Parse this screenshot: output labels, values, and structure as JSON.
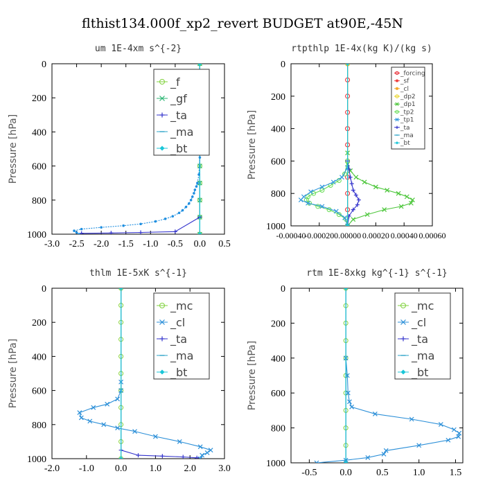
{
  "suptitle": "flthist134.000f_xp2_revert  BUDGET at90E,-45N",
  "chart_data": [
    {
      "type": "line",
      "title": "um  1E-4xm s^{-2}",
      "xlabel": "",
      "ylabel": "Pressure [hPa]",
      "xlim": [
        -3.0,
        0.5
      ],
      "ylim": [
        1000,
        0
      ],
      "y_inverted": true,
      "grid": false,
      "legend_position": "top-right",
      "xticks": [
        "-3.0",
        "-2.5",
        "-2.0",
        "-1.5",
        "-1.0",
        "-0.5",
        "0.0",
        "0.5"
      ],
      "yticks": [
        "0",
        "200",
        "400",
        "600",
        "800",
        "1000"
      ],
      "series": [
        {
          "name": "_f",
          "color": "#7fd13b",
          "marker": "o",
          "x": [
            0.0,
            0.0,
            0.0,
            0.0,
            0.0,
            0.0,
            0.0,
            0.0,
            0.0,
            0.0,
            0.0
          ],
          "y": [
            0,
            100,
            200,
            300,
            400,
            500,
            600,
            700,
            800,
            900,
            1000
          ]
        },
        {
          "name": "_gf",
          "color": "#2bb673",
          "marker": "x",
          "x": [
            0.0,
            0.0,
            0.0,
            0.0,
            0.0,
            0.0,
            0.0,
            0.0,
            0.0,
            0.0,
            0.0
          ],
          "y": [
            0,
            100,
            200,
            300,
            400,
            500,
            600,
            700,
            800,
            900,
            1000
          ]
        },
        {
          "name": "_ta",
          "color": "#3333cc",
          "marker": "+",
          "x": [
            0.0,
            0.0,
            0.0,
            -0.5,
            -1.2,
            -1.8,
            -2.4
          ],
          "y": [
            0,
            500,
            900,
            985,
            990,
            993,
            995
          ]
        },
        {
          "name": "_ma",
          "color": "#2aa3c8",
          "marker": "-",
          "x": [
            0.0,
            0.0
          ],
          "y": [
            0,
            1000
          ]
        },
        {
          "name": "_bt",
          "color": "#19c6d8",
          "marker": "diamond",
          "x": [
            0.0,
            0.0
          ],
          "y": [
            0,
            1000
          ]
        },
        {
          "name": "",
          "color": "#1f8fe0",
          "marker": "dot",
          "dashed": true,
          "x": [
            0.0,
            -0.02,
            -0.05,
            -0.07,
            -0.1,
            -0.12,
            -0.15,
            -0.18,
            -0.22,
            -0.28,
            -0.35,
            -0.42,
            -0.55,
            -0.7,
            -0.9,
            -1.2,
            -1.55,
            -2.0,
            -2.4,
            -2.55,
            -2.5,
            -2.45
          ],
          "y": [
            550,
            650,
            700,
            720,
            740,
            760,
            780,
            800,
            820,
            840,
            860,
            875,
            895,
            910,
            925,
            940,
            950,
            960,
            970,
            980,
            990,
            1000
          ]
        }
      ]
    },
    {
      "type": "line",
      "title": "rtpthlp  1E-4x(kg K)/(kg s)",
      "xlabel": "",
      "ylabel": "Pressure [hPa]",
      "xlim": [
        -0.0004,
        0.0006
      ],
      "ylim": [
        1000,
        0
      ],
      "y_inverted": true,
      "grid": false,
      "legend_position": "top-right",
      "xticks": [
        "-0.00040",
        "-0.00020",
        "0.00000",
        "0.00020",
        "0.00040",
        "0.00060"
      ],
      "yticks": [
        "0",
        "200",
        "400",
        "600",
        "800",
        "1000"
      ],
      "series": [
        {
          "name": "_forcing",
          "color": "#e8222c",
          "marker": "o",
          "x": [
            0.0,
            0.0,
            0.0,
            0.0,
            0.0,
            0.0,
            0.0,
            0.0,
            0.0,
            0.0,
            0.0
          ],
          "y": [
            0,
            100,
            200,
            300,
            400,
            500,
            600,
            700,
            800,
            900,
            1000
          ]
        },
        {
          "name": "_sf",
          "color": "#ee3b3b",
          "marker": "*",
          "x": [
            0.0,
            0.0
          ],
          "y": [
            0,
            1000
          ]
        },
        {
          "name": "_cl",
          "color": "#f5a623",
          "marker": "*",
          "x": [
            0.0,
            0.0
          ],
          "y": [
            0,
            1000
          ]
        },
        {
          "name": "_dp2",
          "color": "#e8d21c",
          "marker": "o",
          "x": [
            0.0,
            0.0
          ],
          "y": [
            0,
            1000
          ]
        },
        {
          "name": "_dp1",
          "color": "#4cc63a",
          "marker": "x",
          "x": [
            0.0,
            0.0,
            2e-05,
            6e-05,
            0.00012,
            0.0002,
            0.00028,
            0.00036,
            0.00042,
            0.00046,
            0.00045,
            0.00038,
            0.00026,
            0.00014,
            4e-05,
            0.0
          ],
          "y": [
            550,
            620,
            660,
            700,
            730,
            760,
            780,
            800,
            820,
            840,
            860,
            880,
            900,
            930,
            960,
            1000
          ]
        },
        {
          "name": "_tp2",
          "color": "#66dd55",
          "marker": "o",
          "x": [
            0.0,
            -2e-05,
            -6e-05,
            -0.00012,
            -0.00018,
            -0.00024,
            -0.00028,
            -0.00029,
            -0.00027,
            -0.00021,
            -0.00013,
            -6e-05,
            -1e-05,
            0.0
          ],
          "y": [
            600,
            680,
            720,
            750,
            780,
            800,
            820,
            840,
            860,
            880,
            900,
            930,
            960,
            1000
          ]
        },
        {
          "name": "_tp1",
          "color": "#3399dd",
          "marker": "x",
          "x": [
            0.0,
            -4e-05,
            -0.0001,
            -0.00018,
            -0.00026,
            -0.00031,
            -0.00033,
            -0.00028,
            -0.00018,
            -8e-05,
            -2e-05,
            0.0
          ],
          "y": [
            640,
            700,
            730,
            760,
            790,
            820,
            840,
            860,
            880,
            910,
            950,
            1000
          ]
        },
        {
          "name": "_ta",
          "color": "#3333cc",
          "marker": "+",
          "x": [
            0.0,
            1e-05,
            2e-05,
            3e-05,
            4e-05,
            6e-05,
            8e-05,
            7e-05,
            4e-05,
            1e-05,
            0.0
          ],
          "y": [
            600,
            650,
            700,
            740,
            780,
            810,
            840,
            870,
            900,
            940,
            1000
          ]
        },
        {
          "name": "_ma",
          "color": "#2aa3c8",
          "marker": "-",
          "x": [
            0.0,
            0.0
          ],
          "y": [
            0,
            1000
          ]
        },
        {
          "name": "_bt",
          "color": "#19c6d8",
          "marker": "diamond",
          "x": [
            0.0,
            0.0
          ],
          "y": [
            0,
            1000
          ]
        }
      ]
    },
    {
      "type": "line",
      "title": "thlm  1E-5xK s^{-1}",
      "xlabel": "",
      "ylabel": "Pressure [hPa]",
      "xlim": [
        -2.0,
        3.0
      ],
      "ylim": [
        1000,
        0
      ],
      "y_inverted": true,
      "grid": false,
      "legend_position": "top-right",
      "xticks": [
        "-2.0",
        "-1.0",
        "0.0",
        "1.0",
        "2.0",
        "3.0"
      ],
      "yticks": [
        "0",
        "200",
        "400",
        "600",
        "800",
        "1000"
      ],
      "series": [
        {
          "name": "_mc",
          "color": "#7fd13b",
          "marker": "o",
          "x": [
            0.0,
            0.0,
            0.0,
            0.0,
            0.0,
            0.0,
            0.0,
            0.0,
            0.0,
            0.0,
            0.0
          ],
          "y": [
            0,
            100,
            200,
            300,
            400,
            500,
            600,
            700,
            800,
            900,
            1000
          ]
        },
        {
          "name": "_cl",
          "color": "#2b8fd8",
          "marker": "x",
          "x": [
            0.0,
            0.0,
            -0.1,
            -0.4,
            -0.8,
            -1.2,
            -1.15,
            -0.9,
            -0.5,
            -0.1,
            0.4,
            1.0,
            1.7,
            2.3,
            2.6,
            2.5,
            2.35,
            2.3
          ],
          "y": [
            550,
            600,
            650,
            680,
            700,
            730,
            760,
            780,
            800,
            820,
            840,
            870,
            900,
            930,
            950,
            965,
            980,
            1000
          ]
        },
        {
          "name": "_ta",
          "color": "#3333cc",
          "marker": "+",
          "x": [
            0.0,
            0.0,
            0.5,
            1.2,
            1.8,
            2.2
          ],
          "y": [
            0,
            950,
            980,
            985,
            990,
            995
          ]
        },
        {
          "name": "_ma",
          "color": "#2aa3c8",
          "marker": "-",
          "x": [
            0.0,
            0.0
          ],
          "y": [
            0,
            1000
          ]
        },
        {
          "name": "_bt",
          "color": "#19c6d8",
          "marker": "diamond",
          "x": [
            0.0,
            0.0
          ],
          "y": [
            0,
            1000
          ]
        }
      ]
    },
    {
      "type": "line",
      "title": "rtm  1E-8xkg kg^{-1} s^{-1}",
      "xlabel": "",
      "ylabel": "Pressure [hPa]",
      "xlim": [
        -0.75,
        1.6
      ],
      "ylim": [
        1000,
        0
      ],
      "y_inverted": true,
      "grid": false,
      "legend_position": "top-right",
      "xticks": [
        "-0.5",
        "0.0",
        "0.5",
        "1.0",
        "1.5"
      ],
      "yticks": [
        "0",
        "200",
        "400",
        "600",
        "800",
        "1000"
      ],
      "series": [
        {
          "name": "_mc",
          "color": "#7fd13b",
          "marker": "o",
          "x": [
            0.0,
            0.0,
            0.0,
            0.0,
            0.0,
            0.0,
            0.0,
            0.0,
            0.0,
            0.0,
            0.0
          ],
          "y": [
            0,
            100,
            200,
            300,
            400,
            500,
            600,
            700,
            800,
            900,
            1000
          ]
        },
        {
          "name": "_cl",
          "color": "#2b8fd8",
          "marker": "x",
          "x": [
            0.0,
            0.02,
            0.03,
            0.05,
            0.08,
            0.4,
            0.9,
            1.3,
            1.48,
            1.55,
            1.54,
            1.4,
            1.0,
            0.55,
            0.52,
            0.3,
            0.0,
            -0.4
          ],
          "y": [
            400,
            500,
            600,
            650,
            680,
            720,
            750,
            780,
            810,
            830,
            850,
            870,
            900,
            930,
            950,
            970,
            985,
            1000
          ]
        },
        {
          "name": "_ta",
          "color": "#3333cc",
          "marker": "+",
          "x": [
            0.0,
            0.0
          ],
          "y": [
            0,
            1000
          ]
        },
        {
          "name": "_ma",
          "color": "#2aa3c8",
          "marker": "-",
          "x": [
            0.0,
            0.0
          ],
          "y": [
            0,
            1000
          ]
        },
        {
          "name": "_bt",
          "color": "#19c6d8",
          "marker": "diamond",
          "x": [
            0.0,
            0.0
          ],
          "y": [
            0,
            1000
          ]
        }
      ]
    }
  ]
}
